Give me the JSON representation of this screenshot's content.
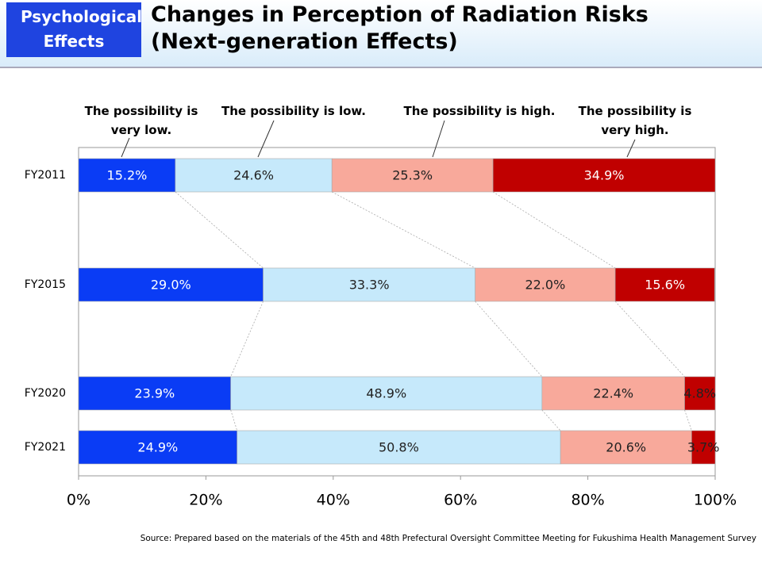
{
  "header": {
    "tag": "Psychological Effects",
    "title": "Changes in Perception of Radiation Risks (Next-generation Effects)"
  },
  "chart_data": {
    "type": "bar",
    "horizontal": true,
    "stacked": true,
    "categories": [
      "FY2011",
      "FY2015",
      "FY2020",
      "FY2021"
    ],
    "series": [
      {
        "name": "The possibility is very low.",
        "color": "#0a3cf5",
        "values": [
          15.2,
          29.0,
          23.9,
          24.9
        ],
        "value_labels": [
          "15.2%",
          "29.0%",
          "23.9%",
          "24.9%"
        ]
      },
      {
        "name": "The possibility is low.",
        "color": "#c6e9fb",
        "values": [
          24.6,
          33.3,
          48.9,
          50.8
        ],
        "value_labels": [
          "24.6%",
          "33.3%",
          "48.9%",
          "50.8%"
        ]
      },
      {
        "name": "The possibility is high.",
        "color": "#f8a99b",
        "values": [
          25.3,
          22.0,
          22.4,
          20.6
        ],
        "value_labels": [
          "25.3%",
          "22.0%",
          "22.4%",
          "20.6%"
        ]
      },
      {
        "name": "The possibility is very high.",
        "color": "#c00000",
        "values": [
          34.9,
          15.6,
          4.8,
          3.7
        ],
        "value_labels": [
          "34.9%",
          "15.6%",
          "4.8%",
          "3.7%"
        ]
      }
    ],
    "xlim": [
      0,
      100
    ],
    "xticks": [
      {
        "value": 0,
        "label": "0%"
      },
      {
        "value": 20,
        "label": "20%"
      },
      {
        "value": 40,
        "label": "40%"
      },
      {
        "value": 60,
        "label": "60%"
      },
      {
        "value": 80,
        "label": "80%"
      },
      {
        "value": 100,
        "label": "100%"
      }
    ],
    "source": "Source: Prepared based on the materials of the 45th and 48th Prefectural Oversight Committee Meeting for Fukushima Health Management Survey"
  }
}
